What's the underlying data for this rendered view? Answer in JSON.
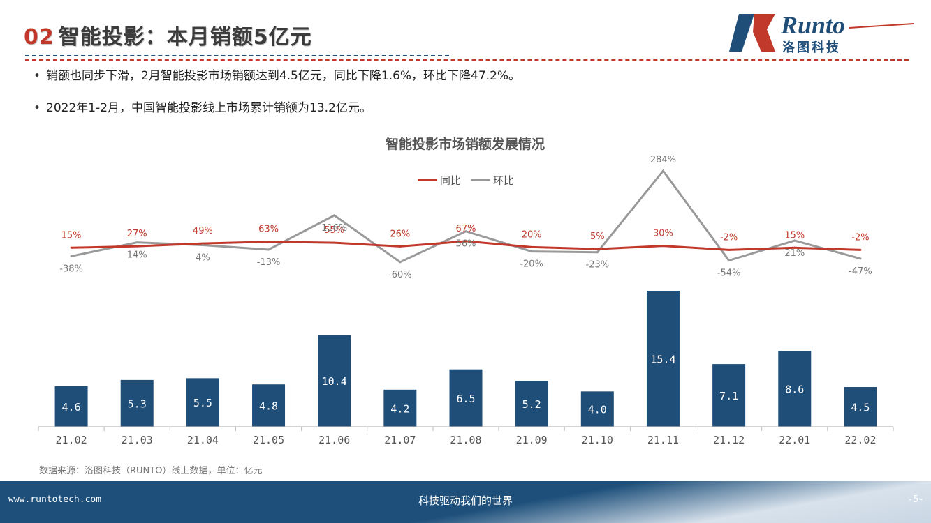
{
  "header": {
    "number": "02",
    "title": "智能投影：本月销额5亿元"
  },
  "logo": {
    "brand_en": "Runto",
    "brand_cn": "洛图科技"
  },
  "bullets": [
    "销额也同步下滑，2月智能投影市场销额达到4.5亿元，同比下降1.6%，环比下降47.2%。",
    "2022年1-2月，中国智能投影线上市场累计销额为13.2亿元。"
  ],
  "chart_data": {
    "type": "bar",
    "title": "智能投影市场销额发展情况",
    "categories": [
      "21.02",
      "21.03",
      "21.04",
      "21.05",
      "21.06",
      "21.07",
      "21.08",
      "21.09",
      "21.10",
      "21.11",
      "21.12",
      "22.01",
      "22.02"
    ],
    "values": [
      4.6,
      5.3,
      5.5,
      4.8,
      10.4,
      4.2,
      6.5,
      5.2,
      4.0,
      15.4,
      7.1,
      8.6,
      4.5
    ],
    "value_labels": [
      "4.6",
      "5.3",
      "5.5",
      "4.8",
      "10.4",
      "4.2",
      "6.5",
      "5.2",
      "4.0",
      "15.4",
      "7.1",
      "8.6",
      "4.5"
    ],
    "series": [
      {
        "name": "同比",
        "type": "line",
        "color": "#c0392b",
        "values": [
          15,
          27,
          49,
          63,
          55,
          26,
          67,
          20,
          5,
          30,
          -2,
          15,
          -2
        ],
        "labels": [
          "15%",
          "27%",
          "49%",
          "63%",
          "55%",
          "26%",
          "67%",
          "20%",
          "5%",
          "30%",
          "-2%",
          "15%",
          "-2%"
        ]
      },
      {
        "name": "环比",
        "type": "line",
        "color": "#999999",
        "values": [
          -38,
          14,
          4,
          -13,
          116,
          -60,
          56,
          -20,
          -23,
          284,
          -54,
          21,
          -47
        ],
        "labels": [
          "-38%",
          "14%",
          "4%",
          "-13%",
          "116%",
          "-60%",
          "56%",
          "-20%",
          "-23%",
          "284%",
          "-54%",
          "21%",
          "-47%"
        ]
      }
    ],
    "bar_color": "#1f4e79",
    "xlabel": "",
    "ylabel": "",
    "legend_position": "top-center"
  },
  "source": "数据来源：洛图科技（RUNTO）线上数据，单位：亿元",
  "footer": {
    "url": "www.runtotech.com",
    "slogan": "科技驱动我们的世界",
    "page": "-5-"
  }
}
